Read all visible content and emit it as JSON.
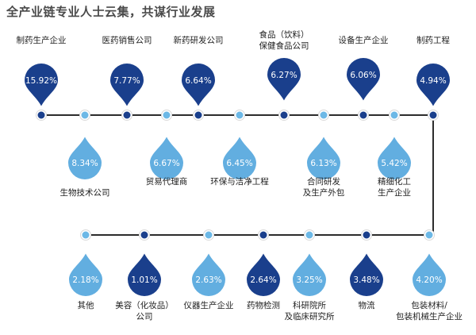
{
  "title": "全产业链专业人士云集，共谋行业发展",
  "colors": {
    "dark_drop": "#1a3f8c",
    "light_drop": "#62aee0",
    "line": "#2c2c2c",
    "dot_dark": "#1a3f8c",
    "dot_light": "#6cb8e6",
    "label_text": "#222222"
  },
  "chart_data": {
    "type": "bar",
    "title": "全产业链专业人士云集，共谋行业发展",
    "value_unit": "%",
    "series": [
      {
        "values": [
          {
            "name": "制药生产企业",
            "value": 15.92,
            "value_label": "15.92%",
            "style": "dark"
          },
          {
            "name": "生物技术公司",
            "value": 8.34,
            "value_label": "8.34%",
            "style": "light"
          },
          {
            "name": "医药销售公司",
            "value": 7.77,
            "value_label": "7.77%",
            "style": "dark"
          },
          {
            "name": "贸易代理商",
            "value": 6.67,
            "value_label": "6.67%",
            "style": "light"
          },
          {
            "name": "新药研发公司",
            "value": 6.64,
            "value_label": "6.64%",
            "style": "dark"
          },
          {
            "name": "环保与洁净工程",
            "value": 6.45,
            "value_label": "6.45%",
            "style": "light"
          },
          {
            "name": "食品（饮料）保健食品公司",
            "label_lines": [
              "食品（饮料）",
              "保健食品公司"
            ],
            "value": 6.27,
            "value_label": "6.27%",
            "style": "dark"
          },
          {
            "name": "合同研发及生产外包",
            "label_lines": [
              "合同研发",
              "及生产外包"
            ],
            "value": 6.13,
            "value_label": "6.13%",
            "style": "light"
          },
          {
            "name": "设备生产企业",
            "value": 6.06,
            "value_label": "6.06%",
            "style": "dark"
          },
          {
            "name": "精细化工生产企业",
            "label_lines": [
              "精细化工",
              "生产企业"
            ],
            "value": 5.42,
            "value_label": "5.42%",
            "style": "light"
          },
          {
            "name": "制药工程",
            "value": 4.94,
            "value_label": "4.94%",
            "style": "dark"
          },
          {
            "name": "包装材料/包装机械生产企业",
            "label_lines": [
              "包装材料/",
              "包装机械生产企业"
            ],
            "value": 4.2,
            "value_label": "4.20%",
            "style": "light"
          },
          {
            "name": "物流",
            "value": 3.48,
            "value_label": "3.48%",
            "style": "dark"
          },
          {
            "name": "科研院所及临床研究所",
            "label_lines": [
              "科研院所",
              "及临床研究所"
            ],
            "value": 3.25,
            "value_label": "3.25%",
            "style": "light"
          },
          {
            "name": "药物检测",
            "value": 2.64,
            "value_label": "2.64%",
            "style": "dark"
          },
          {
            "name": "仪器生产企业",
            "value": 2.63,
            "value_label": "2.63%",
            "style": "light"
          },
          {
            "name": "美容（化妆品）公司",
            "label_lines": [
              "美容（化妆品）",
              "公司"
            ],
            "value": 1.01,
            "value_label": "1.01%",
            "style": "dark"
          },
          {
            "name": "其他",
            "value": 2.18,
            "value_label": "2.18%",
            "style": "light"
          }
        ]
      }
    ]
  }
}
